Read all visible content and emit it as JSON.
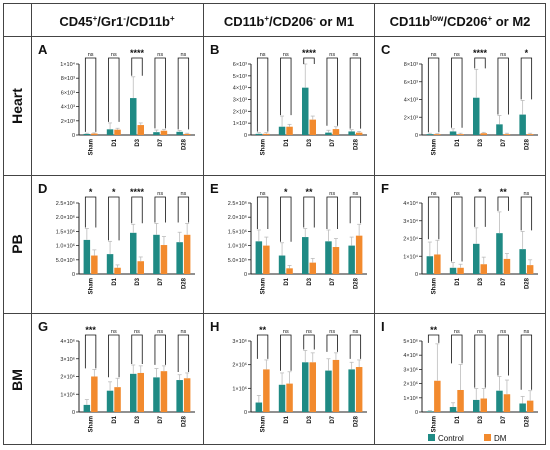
{
  "colors": {
    "control": "#1f8a84",
    "dm": "#f28a2e",
    "errorbar": "#bcbcbc",
    "axis": "#222222",
    "grid_border": "#444444"
  },
  "columns": {
    "col1": {
      "main": "CD45",
      "sup1": "+",
      "mid1": "/Gr1",
      "sup2": "-",
      "mid2": "/CD11b",
      "sup3": "+",
      "tail": ""
    },
    "col2": {
      "main": "CD11b",
      "sup1": "+",
      "mid1": "/CD206",
      "sup2": "-",
      "mid2": " or M1",
      "sup3": "",
      "tail": ""
    },
    "col3": {
      "main": "CD11b",
      "sup1": "low",
      "mid1": "/CD206",
      "sup2": "+",
      "mid2": " or M2",
      "sup3": "",
      "tail": ""
    }
  },
  "rows": [
    "Heart",
    "PB",
    "BM"
  ],
  "legend": {
    "control": "Control",
    "dm": "DM"
  },
  "chart_data": [
    {
      "type": "bar",
      "panel": "A",
      "tissue": "Heart",
      "population": "CD45+/Gr1-/CD11b+",
      "categories": [
        "Sham",
        "D1",
        "D3",
        "D7",
        "D28"
      ],
      "series": [
        {
          "name": "Control",
          "values": [
            150,
            800,
            5200,
            400,
            450
          ],
          "errors": [
            100,
            900,
            3000,
            300,
            200
          ]
        },
        {
          "name": "DM",
          "values": [
            200,
            750,
            1400,
            600,
            150
          ],
          "errors": [
            100,
            200,
            300,
            200,
            100
          ]
        }
      ],
      "significance": [
        "ns",
        "ns",
        "****",
        "ns",
        "ns"
      ],
      "ylim": [
        0,
        10000
      ],
      "ytick_labels": [
        "0",
        "2×10³",
        "4×10³",
        "6×10³",
        "8×10³",
        "1×10⁴"
      ]
    },
    {
      "type": "bar",
      "panel": "B",
      "tissue": "Heart",
      "population": "CD11b+/CD206- or M1",
      "categories": [
        "Sham",
        "D1",
        "D3",
        "D7",
        "D28"
      ],
      "series": [
        {
          "name": "Control",
          "values": [
            100,
            700,
            4000,
            200,
            300
          ],
          "errors": [
            100,
            900,
            2500,
            200,
            150
          ]
        },
        {
          "name": "DM",
          "values": [
            100,
            700,
            1300,
            500,
            200
          ],
          "errors": [
            100,
            200,
            300,
            200,
            100
          ]
        }
      ],
      "significance": [
        "ns",
        "ns",
        "****",
        "ns",
        "ns"
      ],
      "ylim": [
        0,
        6000
      ],
      "ytick_labels": [
        "0",
        "1×10³",
        "2×10³",
        "3×10³",
        "4×10³",
        "5×10³",
        "6×10³"
      ]
    },
    {
      "type": "bar",
      "panel": "C",
      "tissue": "Heart",
      "population": "CD11blow/CD206+ or M2",
      "categories": [
        "Sham",
        "D1",
        "D3",
        "D7",
        "D28"
      ],
      "series": [
        {
          "name": "Control",
          "values": [
            100,
            400,
            4200,
            1200,
            2300
          ],
          "errors": [
            100,
            300,
            3200,
            1000,
            1600
          ]
        },
        {
          "name": "DM",
          "values": [
            100,
            100,
            200,
            100,
            100
          ],
          "errors": [
            50,
            100,
            100,
            100,
            100
          ]
        }
      ],
      "significance": [
        "ns",
        "ns",
        "****",
        "ns",
        "*"
      ],
      "ylim": [
        0,
        8000
      ],
      "ytick_labels": [
        "0",
        "2×10³",
        "4×10³",
        "6×10³",
        "8×10³"
      ]
    },
    {
      "type": "bar",
      "panel": "D",
      "tissue": "PB",
      "population": "CD45+/Gr1-/CD11b+",
      "categories": [
        "Sham",
        "D1",
        "D3",
        "D7",
        "D28"
      ],
      "series": [
        {
          "name": "Control",
          "values": [
            1200000,
            700000,
            1450000,
            1380000,
            1120000
          ],
          "errors": [
            400000,
            450000,
            300000,
            400000,
            350000
          ]
        },
        {
          "name": "DM",
          "values": [
            650000,
            220000,
            450000,
            1020000,
            1380000
          ],
          "errors": [
            200000,
            100000,
            150000,
            300000,
            400000
          ]
        }
      ],
      "significance": [
        "*",
        "*",
        "****",
        "ns",
        "ns"
      ],
      "ylim": [
        0,
        2500000
      ],
      "ytick_labels": [
        "0",
        "5.0×10⁵",
        "1.0×10⁶",
        "1.5×10⁶",
        "2.0×10⁶",
        "2.5×10⁶"
      ]
    },
    {
      "type": "bar",
      "panel": "E",
      "tissue": "PB",
      "population": "CD11b+/CD206- or M1",
      "categories": [
        "Sham",
        "D1",
        "D3",
        "D7",
        "D28"
      ],
      "series": [
        {
          "name": "Control",
          "values": [
            1150000,
            650000,
            1300000,
            1150000,
            1000000
          ],
          "errors": [
            400000,
            450000,
            300000,
            400000,
            300000
          ]
        },
        {
          "name": "DM",
          "values": [
            1000000,
            200000,
            400000,
            950000,
            1350000
          ],
          "errors": [
            300000,
            100000,
            150000,
            300000,
            400000
          ]
        }
      ],
      "significance": [
        "ns",
        "*",
        "**",
        "ns",
        "ns"
      ],
      "ylim": [
        0,
        2500000
      ],
      "ytick_labels": [
        "0",
        "5.0×10⁵",
        "1.0×10⁶",
        "1.5×10⁶",
        "2.0×10⁶",
        "2.5×10⁶"
      ]
    },
    {
      "type": "bar",
      "panel": "F",
      "tissue": "PB",
      "population": "CD11blow/CD206+ or M2",
      "categories": [
        "Sham",
        "D1",
        "D3",
        "D7",
        "D28"
      ],
      "series": [
        {
          "name": "Control",
          "values": [
            10000,
            3500,
            17000,
            23000,
            14000
          ],
          "errors": [
            8000,
            3000,
            9000,
            12000,
            10000
          ]
        },
        {
          "name": "DM",
          "values": [
            11000,
            3500,
            5500,
            8500,
            5000
          ],
          "errors": [
            8000,
            2000,
            4000,
            3000,
            3000
          ]
        }
      ],
      "significance": [
        "ns",
        "ns",
        "*",
        "**",
        "ns"
      ],
      "ylim": [
        0,
        40000
      ],
      "ytick_labels": [
        "0",
        "1×10⁴",
        "2×10⁴",
        "3×10⁴",
        "4×10⁴"
      ]
    },
    {
      "type": "bar",
      "panel": "G",
      "tissue": "BM",
      "population": "CD45+/Gr1-/CD11b+",
      "categories": [
        "Sham",
        "D1",
        "D3",
        "D7",
        "D28"
      ],
      "series": [
        {
          "name": "Control",
          "values": [
            400000,
            1200000,
            2150000,
            1950000,
            1800000
          ],
          "errors": [
            300000,
            500000,
            500000,
            500000,
            300000
          ]
        },
        {
          "name": "DM",
          "values": [
            2000000,
            1400000,
            2200000,
            2300000,
            1900000
          ],
          "errors": [
            400000,
            500000,
            400000,
            300000,
            300000
          ]
        }
      ],
      "significance": [
        "***",
        "ns",
        "ns",
        "ns",
        "ns"
      ],
      "ylim": [
        0,
        4000000
      ],
      "ytick_labels": [
        "0",
        "1×10⁶",
        "2×10⁶",
        "3×10⁶",
        "4×10⁶"
      ]
    },
    {
      "type": "bar",
      "panel": "H",
      "tissue": "BM",
      "population": "CD11b+/CD206- or M1",
      "categories": [
        "Sham",
        "D1",
        "D3",
        "D7",
        "D28"
      ],
      "series": [
        {
          "name": "Control",
          "values": [
            400000,
            1150000,
            2100000,
            1750000,
            1800000
          ],
          "errors": [
            300000,
            500000,
            500000,
            500000,
            300000
          ]
        },
        {
          "name": "DM",
          "values": [
            1800000,
            1200000,
            2100000,
            2200000,
            1900000
          ],
          "errors": [
            400000,
            500000,
            400000,
            300000,
            300000
          ]
        }
      ],
      "significance": [
        "**",
        "ns",
        "ns",
        "ns",
        "ns"
      ],
      "ylim": [
        0,
        3000000
      ],
      "ytick_labels": [
        "0",
        "1×10⁶",
        "2×10⁶",
        "3×10⁶"
      ]
    },
    {
      "type": "bar",
      "panel": "I",
      "tissue": "BM",
      "population": "CD11blow/CD206+ or M2",
      "categories": [
        "Sham",
        "D1",
        "D3",
        "D7",
        "D28"
      ],
      "series": [
        {
          "name": "Control",
          "values": [
            50000,
            350000,
            850000,
            1500000,
            600000
          ],
          "errors": [
            50000,
            300000,
            800000,
            1000000,
            500000
          ]
        },
        {
          "name": "DM",
          "values": [
            2200000,
            1550000,
            950000,
            1250000,
            800000
          ],
          "errors": [
            2600000,
            1800000,
            700000,
            1000000,
            700000
          ]
        }
      ],
      "significance": [
        "**",
        "ns",
        "ns",
        "ns",
        "ns"
      ],
      "ylim": [
        0,
        5000000
      ],
      "ytick_labels": [
        "0",
        "1×10⁶",
        "2×10⁶",
        "3×10⁶",
        "4×10⁶",
        "5×10⁶"
      ]
    }
  ]
}
